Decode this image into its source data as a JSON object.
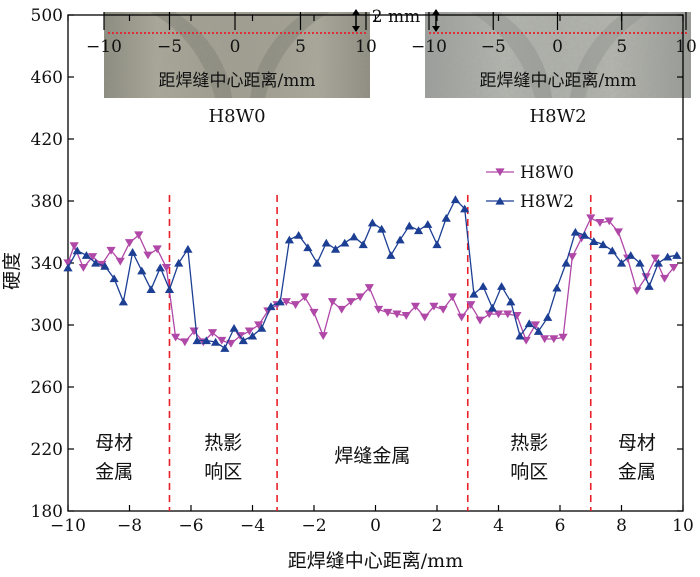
{
  "chart_data": {
    "type": "line",
    "xlabel": "距焊缝中心距离/mm",
    "ylabel": "硬度",
    "xlim": [
      -10,
      10
    ],
    "ylim": [
      180,
      500
    ],
    "xticks": [
      -10,
      -8,
      -6,
      -4,
      -2,
      0,
      2,
      4,
      6,
      8,
      10
    ],
    "yticks": [
      180,
      220,
      260,
      300,
      340,
      380,
      420,
      460,
      500
    ],
    "xtick_labels": [
      "−10",
      "−8",
      "−6",
      "−4",
      "−2",
      "0",
      "2",
      "4",
      "6",
      "8",
      "10"
    ],
    "grid": false,
    "legend_position": "upper-right",
    "boundaries": [
      -6.7,
      -3.2,
      3.0,
      7.0
    ],
    "regions": [
      {
        "x": -8.5,
        "lines": [
          "母材",
          "金属"
        ]
      },
      {
        "x": -4.95,
        "lines": [
          "热影",
          "响区"
        ]
      },
      {
        "x": -0.1,
        "lines": [
          "焊缝金属"
        ]
      },
      {
        "x": 5.0,
        "lines": [
          "热影",
          "响区"
        ]
      },
      {
        "x": 8.5,
        "lines": [
          "母材",
          "金属"
        ]
      }
    ],
    "series": [
      {
        "name": "H8W0",
        "color": "#b048a8",
        "marker": "triangle-down",
        "x": [
          -10.0,
          -9.8,
          -9.5,
          -9.2,
          -8.9,
          -8.6,
          -8.3,
          -8.0,
          -7.7,
          -7.4,
          -7.1,
          -6.8,
          -6.5,
          -6.2,
          -5.9,
          -5.6,
          -5.3,
          -5.0,
          -4.7,
          -4.4,
          -4.1,
          -3.8,
          -3.5,
          -3.2,
          -2.9,
          -2.6,
          -2.3,
          -2.0,
          -1.7,
          -1.4,
          -1.1,
          -0.8,
          -0.5,
          -0.2,
          0.1,
          0.4,
          0.7,
          1.0,
          1.3,
          1.6,
          1.9,
          2.2,
          2.5,
          2.8,
          3.1,
          3.4,
          3.7,
          4.0,
          4.3,
          4.6,
          4.9,
          5.2,
          5.5,
          5.8,
          6.1,
          6.4,
          6.7,
          7.0,
          7.3,
          7.6,
          7.9,
          8.2,
          8.5,
          8.8,
          9.1,
          9.4,
          9.7
        ],
        "y": [
          340,
          351,
          337,
          344,
          339,
          348,
          341,
          353,
          358,
          345,
          349,
          337,
          292,
          289,
          296,
          289,
          295,
          290,
          288,
          293,
          296,
          300,
          309,
          313,
          315,
          313,
          318,
          308,
          293,
          315,
          310,
          315,
          318,
          324,
          310,
          308,
          307,
          306,
          312,
          305,
          312,
          310,
          318,
          305,
          313,
          303,
          307,
          307,
          307,
          306,
          290,
          300,
          291,
          291,
          292,
          344,
          356,
          369,
          366,
          367,
          360,
          343,
          322,
          331,
          343,
          330,
          337
        ]
      },
      {
        "name": "H8W2",
        "color": "#1c3f94",
        "marker": "triangle-up",
        "x": [
          -10.0,
          -9.7,
          -9.4,
          -9.1,
          -8.8,
          -8.5,
          -8.2,
          -7.9,
          -7.6,
          -7.3,
          -7.0,
          -6.7,
          -6.4,
          -6.1,
          -5.8,
          -5.5,
          -5.2,
          -4.9,
          -4.6,
          -4.3,
          -4.0,
          -3.7,
          -3.4,
          -3.1,
          -2.8,
          -2.5,
          -2.2,
          -1.9,
          -1.6,
          -1.3,
          -1.0,
          -0.7,
          -0.4,
          -0.1,
          0.2,
          0.5,
          0.8,
          1.1,
          1.4,
          1.7,
          2.0,
          2.3,
          2.6,
          2.9,
          3.2,
          3.5,
          3.8,
          4.1,
          4.4,
          4.7,
          5.0,
          5.3,
          5.6,
          5.9,
          6.2,
          6.5,
          6.8,
          7.1,
          7.4,
          7.7,
          8.0,
          8.3,
          8.6,
          8.9,
          9.2,
          9.5,
          9.8
        ],
        "y": [
          337,
          348,
          345,
          340,
          338,
          330,
          315,
          347,
          335,
          323,
          337,
          323,
          340,
          349,
          290,
          290,
          289,
          285,
          298,
          290,
          293,
          298,
          312,
          315,
          355,
          358,
          350,
          340,
          353,
          349,
          353,
          357,
          352,
          366,
          362,
          345,
          355,
          364,
          361,
          365,
          352,
          369,
          381,
          375,
          320,
          325,
          311,
          325,
          315,
          293,
          301,
          296,
          305,
          324,
          340,
          360,
          358,
          354,
          352,
          348,
          340,
          345,
          340,
          325,
          340,
          344,
          345
        ]
      }
    ]
  },
  "photos": [
    {
      "caption": "H8W0",
      "xlabel": "距焊缝中心距离/mm",
      "ticks": [
        "−10",
        "−5",
        "0",
        "5",
        "10"
      ]
    },
    {
      "caption": "H8W2",
      "xlabel": "距焊缝中心距离/mm",
      "ticks": [
        "−10",
        "−5",
        "0",
        "5",
        "10"
      ]
    }
  ],
  "scale_bar": "2 mm"
}
